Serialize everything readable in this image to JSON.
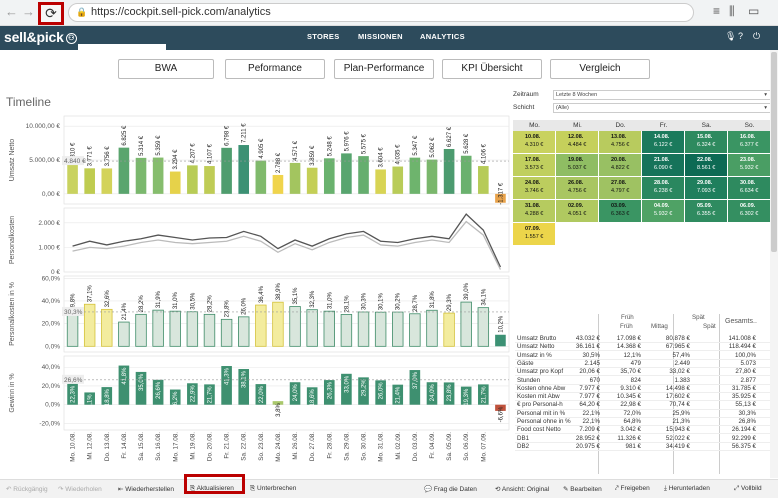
{
  "browser": {
    "url": "https://cockpit.sell-pick.com/analytics"
  },
  "app": {
    "logo": "sell&pick",
    "menu": [
      "STORES",
      "MISSIONEN",
      "ANALYTICS"
    ]
  },
  "tabs": [
    "BWA",
    "Peformance",
    "Plan-Performance",
    "KPI Übersicht",
    "Vergleich"
  ],
  "timeline": {
    "title": "Timeline"
  },
  "chart_data": [
    {
      "type": "bar",
      "ylabel": "Umsatz Netto",
      "yticks": [
        "0,00 €",
        "5.000,00 €",
        "10.000,00 €"
      ],
      "ylim": [
        -1500,
        11500
      ],
      "avg_label": "4.840 €",
      "avg": 4840,
      "labels": [
        "4.310 €",
        "3.771 €",
        "3.756 €",
        "6.825 €",
        "5.314 €",
        "5.359 €",
        "3.294 €",
        "4.207 €",
        "4.107 €",
        "6.798 €",
        "7.211 €",
        "4.905 €",
        "2.788 €",
        "4.571 €",
        "3.859 €",
        "5.248 €",
        "5.976 €",
        "5.575 €",
        "3.604 €",
        "4.035 €",
        "5.347 €",
        "5.062 €",
        "6.627 €",
        "5.628 €",
        "4.106 €",
        "-1.317 €"
      ],
      "values": [
        4310,
        3771,
        3756,
        6825,
        5314,
        5359,
        3294,
        4207,
        4107,
        6798,
        7211,
        4905,
        2788,
        4571,
        3859,
        5248,
        5976,
        5575,
        3604,
        4035,
        5347,
        5062,
        6627,
        5628,
        4106,
        -1317
      ],
      "colors": [
        "#c9d25f",
        "#bfcc50",
        "#d3d35a",
        "#5aa56e",
        "#7bb86e",
        "#86bd6d",
        "#e6d24a",
        "#b8cc56",
        "#bfcc55",
        "#4f9d6e",
        "#3c9174",
        "#80ba6c",
        "#f0d44c",
        "#a3c55f",
        "#c4cf56",
        "#6ab26e",
        "#58a56f",
        "#66ae6f",
        "#d8d454",
        "#b9cc58",
        "#6eb46d",
        "#7ab76c",
        "#4c9b6f",
        "#6ab16e",
        "#b6cb58",
        "#e8a24a"
      ]
    },
    {
      "type": "line",
      "ylabel": "Personalkosten",
      "yticks": [
        "0 €",
        "1.000 €",
        "2.000 €"
      ],
      "ylim": [
        0,
        2600
      ],
      "series": [
        {
          "values": [
            1050,
            1250,
            1100,
            1250,
            1350,
            1500,
            1400,
            1300,
            1380,
            1400,
            1650,
            1450,
            950,
            1300,
            1050,
            1350,
            1550,
            1650,
            1250,
            1200,
            1350,
            1450,
            1350,
            2350,
            1700,
            200
          ]
        },
        {
          "values": [
            850,
            1000,
            950,
            1050,
            1200,
            1300,
            1200,
            1150,
            1200,
            1250,
            1450,
            1250,
            800,
            1150,
            900,
            1200,
            1400,
            1500,
            1100,
            1050,
            1200,
            1300,
            1200,
            2050,
            1500,
            100
          ]
        }
      ]
    },
    {
      "type": "bar",
      "ylabel": "Personalkosten in %",
      "yticks": [
        "0,0%",
        "20,0%",
        "40,0%",
        "60,0%"
      ],
      "ylim": [
        -5,
        62
      ],
      "avg_label": "30,3%",
      "avg": 30.3,
      "labels": [
        "29,8%",
        "37,1%",
        "32,6%",
        "21,4%",
        "28,2%",
        "31,9%",
        "31,0%",
        "30,5%",
        "28,2%",
        "23,8%",
        "26,0%",
        "36,4%",
        "38,9%",
        "35,1%",
        "32,3%",
        "31,0%",
        "28,1%",
        "30,3%",
        "30,1%",
        "30,2%",
        "28,7%",
        "31,8%",
        "29,3%",
        "39,0%",
        "34,1%",
        "10,2%"
      ],
      "values": [
        29.8,
        37.1,
        32.6,
        21.4,
        28.2,
        31.9,
        31.0,
        30.5,
        28.2,
        23.8,
        26.0,
        36.4,
        38.9,
        35.1,
        32.3,
        31.0,
        28.1,
        30.3,
        30.1,
        30.2,
        28.7,
        31.8,
        29.3,
        39.0,
        34.1,
        10.2
      ],
      "highlight": [
        1,
        2,
        11,
        12,
        22
      ]
    },
    {
      "type": "bar",
      "ylabel": "Gewinn in %",
      "yticks": [
        "-20,0%",
        "0,0%",
        "20,0%",
        "40,0%"
      ],
      "ylim": [
        -27,
        52
      ],
      "avg_label": "26,6%",
      "avg": 26.6,
      "labels": [
        "22,3%",
        "13,1%",
        "18,8%",
        "41,8%",
        "35,0%",
        "26,6%",
        "16,2%",
        "22,9%",
        "21,7%",
        "41,3%",
        "38,1%",
        "22,0%",
        "3,8%",
        "24,0%",
        "18,6%",
        "26,3%",
        "33,0%",
        "29,2%",
        "26,0%",
        "21,4%",
        "37,0%",
        "24,0%",
        "23,8%",
        "19,3%",
        "21,7%",
        "-6,6%"
      ],
      "values": [
        22.3,
        13.1,
        18.8,
        41.8,
        35.0,
        26.6,
        16.2,
        22.9,
        21.7,
        41.3,
        38.1,
        22.0,
        3.8,
        24.0,
        18.6,
        26.3,
        33.0,
        29.2,
        26.0,
        21.4,
        37.0,
        24.0,
        23.8,
        19.3,
        21.7,
        -6.6
      ]
    }
  ],
  "x_dates": [
    "Mo. 10.08.",
    "Mi. 12.08.",
    "Do. 13.08.",
    "Fr. 14.08.",
    "Sa. 15.08.",
    "So. 16.08.",
    "Mo. 17.08.",
    "Mi. 19.08.",
    "Do. 20.08.",
    "Fr. 21.08.",
    "Sa. 22.08.",
    "So. 23.08.",
    "Mo. 24.08.",
    "Mi. 26.08.",
    "Do. 27.08.",
    "Fr. 28.08.",
    "Sa. 29.08.",
    "So. 30.08.",
    "Mo. 31.08.",
    "Mi. 02.09.",
    "Do. 03.09.",
    "Fr. 04.09.",
    "Sa. 05.09.",
    "So. 06.09.",
    "Mo. 07.09.",
    ""
  ],
  "controls": {
    "zeitraum_label": "Zeitraum",
    "zeitraum_value": "Letzte 8 Wochen",
    "schicht_label": "Schicht",
    "schicht_value": "(Alle)"
  },
  "calendar": {
    "headers": [
      "Mo.",
      "Mi.",
      "Do.",
      "Fr.",
      "Sa.",
      "So."
    ],
    "cells": [
      {
        "row": 0,
        "col": 0,
        "date": "10.08.",
        "value": "4.310 €",
        "color": "#c9d25f"
      },
      {
        "row": 0,
        "col": 1,
        "date": "12.08.",
        "value": "4.484 €",
        "color": "#c5d05b"
      },
      {
        "row": 0,
        "col": 2,
        "date": "13.08.",
        "value": "4.756 €",
        "color": "#b8cb5e"
      },
      {
        "row": 0,
        "col": 3,
        "date": "14.08.",
        "value": "6.122 €",
        "color": "#1b7a5c"
      },
      {
        "row": 0,
        "col": 4,
        "date": "15.08.",
        "value": "6.324 €",
        "color": "#2e8a5f"
      },
      {
        "row": 0,
        "col": 5,
        "date": "16.08.",
        "value": "6.377 €",
        "color": "#3a9563"
      },
      {
        "row": 1,
        "col": 0,
        "date": "17.08.",
        "value": "3.573 €",
        "color": "#c0cf5e"
      },
      {
        "row": 1,
        "col": 1,
        "date": "19.08.",
        "value": "5.037 €",
        "color": "#8fbd63"
      },
      {
        "row": 1,
        "col": 2,
        "date": "20.08.",
        "value": "4.822 €",
        "color": "#98c063"
      },
      {
        "row": 1,
        "col": 3,
        "date": "21.08.",
        "value": "6.090 €",
        "color": "#16735a"
      },
      {
        "row": 1,
        "col": 4,
        "date": "22.08.",
        "value": "8.561 €",
        "color": "#0d6a54"
      },
      {
        "row": 1,
        "col": 5,
        "date": "23.08.",
        "value": "5.932 €",
        "color": "#4a9e64"
      },
      {
        "row": 2,
        "col": 0,
        "date": "24.08.",
        "value": "3.746 €",
        "color": "#bccd5e"
      },
      {
        "row": 2,
        "col": 1,
        "date": "26.08.",
        "value": "4.756 €",
        "color": "#a9c661"
      },
      {
        "row": 2,
        "col": 2,
        "date": "27.08.",
        "value": "4.797 €",
        "color": "#9fc262"
      },
      {
        "row": 2,
        "col": 3,
        "date": "28.08.",
        "value": "6.238 €",
        "color": "#2a875f"
      },
      {
        "row": 2,
        "col": 4,
        "date": "29.08.",
        "value": "7.093 €",
        "color": "#1f7f5d"
      },
      {
        "row": 2,
        "col": 5,
        "date": "30.08.",
        "value": "6.634 €",
        "color": "#2e8a5f"
      },
      {
        "row": 3,
        "col": 0,
        "date": "31.08.",
        "value": "4.288 €",
        "color": "#b6cb5f"
      },
      {
        "row": 3,
        "col": 1,
        "date": "02.09.",
        "value": "4.051 €",
        "color": "#b0c960"
      },
      {
        "row": 3,
        "col": 2,
        "date": "03.09.",
        "value": "6.363 €",
        "color": "#3a9563"
      },
      {
        "row": 3,
        "col": 3,
        "date": "04.09.",
        "value": "5.932 €",
        "color": "#4fa265"
      },
      {
        "row": 3,
        "col": 4,
        "date": "05.09.",
        "value": "6.355 €",
        "color": "#2f8b60"
      },
      {
        "row": 3,
        "col": 5,
        "date": "06.09.",
        "value": "6.302 €",
        "color": "#348f61"
      },
      {
        "row": 4,
        "col": 0,
        "date": "07.09.",
        "value": "1.557 €",
        "color": "#ecd54a"
      }
    ]
  },
  "kpi_table": {
    "group_headers": [
      "Früh",
      "Spät"
    ],
    "col_headers": [
      "Früh",
      "Mittag",
      "Spät",
      "Gesamts.."
    ],
    "rows": [
      {
        "label": "Umsatz Brutto",
        "v": [
          "43.032 €",
          "17.098 €",
          "80.878 €",
          "141.008 €"
        ]
      },
      {
        "label": "Umsatz Netto",
        "v": [
          "36.161 €",
          "14.368 €",
          "67.965 €",
          "118.494 €"
        ]
      },
      {
        "label": "Umsatz in %",
        "v": [
          "30,5%",
          "12,1%",
          "57,4%",
          "100,0%"
        ]
      },
      {
        "label": "Gäste",
        "v": [
          "2.145",
          "479",
          "2.449",
          "5.073"
        ]
      },
      {
        "label": "Umsatz pro Kopf",
        "v": [
          "20,06 €",
          "35,70 €",
          "33,02 €",
          "27,80 €"
        ]
      },
      {
        "label": "Stunden",
        "v": [
          "670",
          "824",
          "1.383",
          "2.877"
        ]
      },
      {
        "label": "Kosten ohne Abw",
        "v": [
          "7.977 €",
          "9.310 €",
          "14.498 €",
          "31.785 €"
        ]
      },
      {
        "label": "Kosten mit Abw",
        "v": [
          "7.977 €",
          "10.345 €",
          "17.602 €",
          "35.925 €"
        ]
      },
      {
        "label": "€ pro Personal-h",
        "v": [
          "64,20 €",
          "22,98 €",
          "70,74 €",
          "55,13 €"
        ]
      },
      {
        "label": "Personal mit in %",
        "v": [
          "22,1%",
          "72,0%",
          "25,9%",
          "30,3%"
        ]
      },
      {
        "label": "Personal ohne in %",
        "v": [
          "22,1%",
          "64,8%",
          "21,3%",
          "26,8%"
        ]
      },
      {
        "label": "Food cost Netto",
        "v": [
          "7.209 €",
          "3.042 €",
          "15.943 €",
          "26.194 €"
        ]
      },
      {
        "label": "DB1",
        "v": [
          "28.952 €",
          "11.326 €",
          "52.022 €",
          "92.299 €"
        ]
      },
      {
        "label": "DB2",
        "v": [
          "20.975 €",
          "981 €",
          "34.419 €",
          "56.375 €"
        ]
      }
    ]
  },
  "toolbar": {
    "undo": "Rückgängig",
    "redo": "Wiederholen",
    "restore": "Wiederherstellen",
    "refresh": "Aktualisieren",
    "pause": "Unterbrechen",
    "ask": "Frag die Daten",
    "view": "Ansicht: Original",
    "edit": "Bearbeiten",
    "share": "Freigeben",
    "download": "Herunterladen",
    "fullscreen": "Vollbild"
  }
}
